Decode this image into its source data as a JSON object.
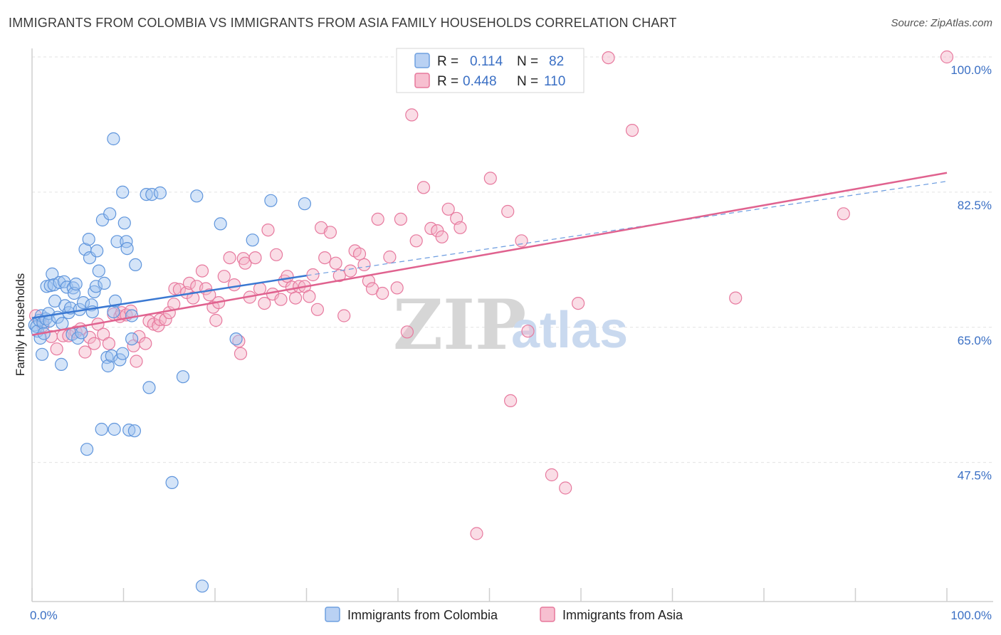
{
  "title": "IMMIGRANTS FROM COLOMBIA VS IMMIGRANTS FROM ASIA FAMILY HOUSEHOLDS CORRELATION CHART",
  "source": "Source: ZipAtlas.com",
  "watermark": {
    "zip": "ZIP",
    "atlas": "atlas"
  },
  "legend": {
    "r_label": "R =",
    "n_label": "N =",
    "series": [
      {
        "name": "Immigrants from Colombia",
        "r": "0.114",
        "n": "82",
        "color": "#6fa0e0",
        "fill": "#b9d1f3"
      },
      {
        "name": "Immigrants from Asia",
        "r": "0.448",
        "n": "110",
        "color": "#e7789c",
        "fill": "#f7bfd0"
      }
    ]
  },
  "chart_data": {
    "type": "scatter",
    "title": "IMMIGRANTS FROM COLOMBIA VS IMMIGRANTS FROM ASIA FAMILY HOUSEHOLDS CORRELATION CHART",
    "xlabel": "",
    "ylabel": "Family Households",
    "xlim": [
      0,
      100
    ],
    "ylim": [
      29.5,
      100
    ],
    "x_tick_labels": [
      "0.0%",
      "100.0%"
    ],
    "y_ticks": [
      47.5,
      65.0,
      82.5,
      100.0
    ],
    "y_tick_labels": [
      "47.5%",
      "65.0%",
      "82.5%",
      "100.0%"
    ],
    "series": [
      {
        "name": "Immigrants from Colombia",
        "color": "#4d86d6",
        "trend": {
          "x0": 0,
          "y0": 66.2,
          "x1": 30,
          "y1": 71.7,
          "dash_to_x": 100,
          "dash_to_y": 83.9
        },
        "points": [
          [
            0.3,
            65.3
          ],
          [
            0.5,
            65.1
          ],
          [
            0.6,
            64.5
          ],
          [
            0.8,
            65.9
          ],
          [
            0.9,
            63.6
          ],
          [
            1.0,
            66.5
          ],
          [
            1.1,
            61.5
          ],
          [
            1.2,
            65.6
          ],
          [
            1.3,
            64.2
          ],
          [
            1.5,
            66.1
          ],
          [
            1.6,
            70.3
          ],
          [
            1.8,
            66.8
          ],
          [
            1.9,
            65.8
          ],
          [
            2.0,
            70.4
          ],
          [
            2.2,
            71.9
          ],
          [
            2.4,
            70.5
          ],
          [
            2.5,
            68.4
          ],
          [
            2.8,
            66.3
          ],
          [
            3.0,
            70.8
          ],
          [
            3.2,
            60.2
          ],
          [
            3.3,
            65.5
          ],
          [
            3.5,
            70.9
          ],
          [
            3.6,
            67.8
          ],
          [
            3.8,
            70.2
          ],
          [
            4.0,
            66.9
          ],
          [
            4.2,
            67.5
          ],
          [
            4.4,
            64.1
          ],
          [
            4.5,
            70.1
          ],
          [
            4.6,
            69.4
          ],
          [
            4.8,
            70.6
          ],
          [
            5.0,
            63.6
          ],
          [
            5.2,
            67.3
          ],
          [
            5.4,
            64.3
          ],
          [
            5.6,
            68.2
          ],
          [
            5.8,
            75.1
          ],
          [
            6.0,
            49.2
          ],
          [
            6.2,
            76.4
          ],
          [
            6.3,
            74.0
          ],
          [
            6.5,
            67.9
          ],
          [
            6.6,
            67.0
          ],
          [
            6.8,
            69.6
          ],
          [
            7.0,
            70.3
          ],
          [
            7.1,
            74.9
          ],
          [
            7.3,
            72.3
          ],
          [
            7.6,
            51.8
          ],
          [
            7.7,
            78.9
          ],
          [
            7.9,
            70.7
          ],
          [
            8.2,
            61.1
          ],
          [
            8.3,
            60.0
          ],
          [
            8.5,
            79.7
          ],
          [
            8.7,
            61.3
          ],
          [
            8.9,
            89.4
          ],
          [
            8.9,
            67.0
          ],
          [
            9.0,
            51.8
          ],
          [
            9.1,
            68.4
          ],
          [
            9.3,
            76.1
          ],
          [
            9.6,
            60.8
          ],
          [
            9.9,
            82.5
          ],
          [
            9.9,
            61.6
          ],
          [
            10.1,
            78.5
          ],
          [
            10.3,
            76.1
          ],
          [
            10.4,
            75.2
          ],
          [
            10.6,
            51.7
          ],
          [
            10.9,
            63.5
          ],
          [
            10.9,
            66.5
          ],
          [
            11.2,
            51.6
          ],
          [
            11.3,
            73.1
          ],
          [
            12.5,
            82.2
          ],
          [
            12.8,
            57.2
          ],
          [
            13.1,
            82.2
          ],
          [
            14.0,
            82.4
          ],
          [
            15.3,
            44.9
          ],
          [
            16.5,
            58.6
          ],
          [
            18.0,
            82.0
          ],
          [
            18.6,
            31.5
          ],
          [
            20.6,
            78.4
          ],
          [
            22.3,
            63.5
          ],
          [
            24.1,
            76.3
          ],
          [
            26.1,
            81.4
          ],
          [
            29.8,
            81.0
          ]
        ]
      },
      {
        "name": "Immigrants from Asia",
        "color": "#e16591",
        "trend": {
          "x0": 0,
          "y0": 64.0,
          "x1": 100,
          "y1": 85.0
        },
        "points": [
          [
            0.4,
            66.5
          ],
          [
            1.2,
            65.2
          ],
          [
            2.1,
            63.8
          ],
          [
            2.7,
            62.2
          ],
          [
            3.4,
            63.9
          ],
          [
            4.0,
            63.9
          ],
          [
            4.8,
            64.4
          ],
          [
            5.3,
            64.8
          ],
          [
            5.8,
            61.8
          ],
          [
            6.3,
            63.7
          ],
          [
            6.8,
            62.9
          ],
          [
            7.2,
            65.4
          ],
          [
            7.8,
            64.1
          ],
          [
            8.4,
            62.9
          ],
          [
            8.9,
            66.7
          ],
          [
            9.6,
            66.4
          ],
          [
            9.8,
            66.9
          ],
          [
            10.3,
            66.6
          ],
          [
            10.8,
            67.1
          ],
          [
            11.1,
            62.6
          ],
          [
            11.4,
            60.6
          ],
          [
            11.7,
            63.8
          ],
          [
            12.4,
            62.9
          ],
          [
            12.8,
            65.8
          ],
          [
            13.3,
            65.4
          ],
          [
            13.8,
            65.2
          ],
          [
            14.0,
            66.0
          ],
          [
            14.6,
            66.0
          ],
          [
            15.0,
            66.9
          ],
          [
            15.5,
            68.0
          ],
          [
            15.6,
            70.0
          ],
          [
            16.1,
            69.9
          ],
          [
            16.9,
            69.5
          ],
          [
            17.2,
            70.7
          ],
          [
            17.6,
            68.8
          ],
          [
            18.0,
            70.3
          ],
          [
            18.6,
            72.3
          ],
          [
            19.0,
            70.0
          ],
          [
            19.4,
            69.2
          ],
          [
            19.8,
            67.6
          ],
          [
            20.1,
            65.9
          ],
          [
            20.4,
            68.2
          ],
          [
            21.0,
            71.6
          ],
          [
            21.6,
            74.0
          ],
          [
            22.1,
            70.5
          ],
          [
            22.6,
            63.2
          ],
          [
            22.8,
            61.6
          ],
          [
            23.1,
            73.9
          ],
          [
            23.3,
            73.3
          ],
          [
            23.8,
            68.9
          ],
          [
            24.4,
            74.0
          ],
          [
            24.9,
            70.0
          ],
          [
            25.4,
            68.1
          ],
          [
            25.8,
            77.6
          ],
          [
            26.3,
            69.3
          ],
          [
            26.7,
            74.4
          ],
          [
            27.2,
            68.6
          ],
          [
            27.6,
            71.0
          ],
          [
            27.9,
            71.6
          ],
          [
            28.4,
            70.2
          ],
          [
            28.8,
            68.8
          ],
          [
            29.2,
            70.3
          ],
          [
            29.8,
            70.3
          ],
          [
            30.3,
            69.0
          ],
          [
            30.7,
            71.8
          ],
          [
            31.2,
            67.3
          ],
          [
            31.6,
            77.9
          ],
          [
            32.0,
            74.0
          ],
          [
            32.6,
            77.3
          ],
          [
            33.2,
            73.3
          ],
          [
            33.6,
            71.7
          ],
          [
            34.1,
            66.5
          ],
          [
            34.8,
            72.3
          ],
          [
            35.3,
            74.9
          ],
          [
            35.8,
            74.5
          ],
          [
            36.3,
            73.1
          ],
          [
            36.8,
            71.0
          ],
          [
            37.2,
            70.0
          ],
          [
            37.8,
            79.0
          ],
          [
            38.3,
            69.4
          ],
          [
            39.1,
            74.1
          ],
          [
            39.9,
            70.1
          ],
          [
            40.3,
            79.0
          ],
          [
            41.0,
            64.4
          ],
          [
            41.5,
            92.5
          ],
          [
            42.0,
            76.2
          ],
          [
            42.8,
            83.1
          ],
          [
            43.6,
            77.8
          ],
          [
            44.3,
            77.5
          ],
          [
            44.8,
            76.7
          ],
          [
            45.5,
            80.3
          ],
          [
            46.4,
            79.1
          ],
          [
            46.8,
            77.9
          ],
          [
            48.6,
            38.3
          ],
          [
            50.1,
            84.3
          ],
          [
            52.0,
            80.0
          ],
          [
            52.3,
            55.5
          ],
          [
            53.5,
            76.2
          ],
          [
            54.2,
            64.5
          ],
          [
            56.8,
            45.9
          ],
          [
            58.3,
            44.2
          ],
          [
            59.7,
            68.1
          ],
          [
            63.0,
            99.9
          ],
          [
            65.6,
            90.5
          ],
          [
            76.9,
            68.8
          ],
          [
            88.7,
            79.7
          ],
          [
            100.0,
            100.0
          ]
        ]
      }
    ]
  }
}
